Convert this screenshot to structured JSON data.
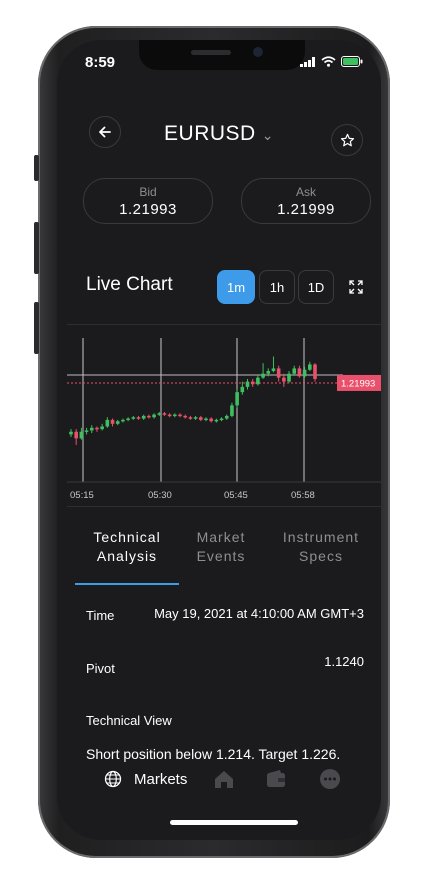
{
  "status": {
    "time": "8:59"
  },
  "header": {
    "symbol": "EURUSD",
    "back_icon": "back-arrow-icon",
    "favorite_icon": "star-icon"
  },
  "quotes": {
    "bid": {
      "label": "Bid",
      "value": "1.21993"
    },
    "ask": {
      "label": "Ask",
      "value": "1.21999"
    }
  },
  "live_chart": {
    "title": "Live Chart",
    "timeframes": [
      {
        "label": "1m",
        "active": true
      },
      {
        "label": "1h",
        "active": false
      },
      {
        "label": "1D",
        "active": false
      }
    ],
    "current_price_label": "1.21993",
    "x_labels": [
      "05:15",
      "05:30",
      "05:45",
      "05:58"
    ]
  },
  "chart_data": {
    "type": "candlestick",
    "x_ticks": [
      "05:15",
      "05:30",
      "05:45",
      "05:58"
    ],
    "current_price": 1.21993,
    "candles": [
      {
        "o": 0.3,
        "c": 0.32,
        "h": 0.34,
        "l": 0.28
      },
      {
        "o": 0.32,
        "c": 0.27,
        "h": 0.34,
        "l": 0.22
      },
      {
        "o": 0.27,
        "c": 0.32,
        "h": 0.35,
        "l": 0.26
      },
      {
        "o": 0.32,
        "c": 0.33,
        "h": 0.35,
        "l": 0.3
      },
      {
        "o": 0.33,
        "c": 0.35,
        "h": 0.37,
        "l": 0.31
      },
      {
        "o": 0.35,
        "c": 0.34,
        "h": 0.36,
        "l": 0.32
      },
      {
        "o": 0.34,
        "c": 0.36,
        "h": 0.38,
        "l": 0.33
      },
      {
        "o": 0.36,
        "c": 0.41,
        "h": 0.43,
        "l": 0.35
      },
      {
        "o": 0.41,
        "c": 0.38,
        "h": 0.42,
        "l": 0.36
      },
      {
        "o": 0.38,
        "c": 0.4,
        "h": 0.41,
        "l": 0.37
      },
      {
        "o": 0.4,
        "c": 0.41,
        "h": 0.42,
        "l": 0.39
      },
      {
        "o": 0.41,
        "c": 0.42,
        "h": 0.43,
        "l": 0.4
      },
      {
        "o": 0.42,
        "c": 0.43,
        "h": 0.44,
        "l": 0.41
      },
      {
        "o": 0.43,
        "c": 0.42,
        "h": 0.44,
        "l": 0.41
      },
      {
        "o": 0.42,
        "c": 0.44,
        "h": 0.45,
        "l": 0.41
      },
      {
        "o": 0.44,
        "c": 0.43,
        "h": 0.45,
        "l": 0.42
      },
      {
        "o": 0.43,
        "c": 0.45,
        "h": 0.46,
        "l": 0.42
      },
      {
        "o": 0.45,
        "c": 0.46,
        "h": 0.47,
        "l": 0.44
      },
      {
        "o": 0.46,
        "c": 0.45,
        "h": 0.47,
        "l": 0.44
      },
      {
        "o": 0.45,
        "c": 0.44,
        "h": 0.46,
        "l": 0.43
      },
      {
        "o": 0.44,
        "c": 0.45,
        "h": 0.46,
        "l": 0.43
      },
      {
        "o": 0.45,
        "c": 0.44,
        "h": 0.46,
        "l": 0.43
      },
      {
        "o": 0.44,
        "c": 0.43,
        "h": 0.45,
        "l": 0.42
      },
      {
        "o": 0.43,
        "c": 0.42,
        "h": 0.44,
        "l": 0.41
      },
      {
        "o": 0.42,
        "c": 0.43,
        "h": 0.44,
        "l": 0.41
      },
      {
        "o": 0.43,
        "c": 0.41,
        "h": 0.44,
        "l": 0.4
      },
      {
        "o": 0.41,
        "c": 0.42,
        "h": 0.43,
        "l": 0.4
      },
      {
        "o": 0.42,
        "c": 0.4,
        "h": 0.43,
        "l": 0.39
      },
      {
        "o": 0.4,
        "c": 0.41,
        "h": 0.42,
        "l": 0.39
      },
      {
        "o": 0.41,
        "c": 0.42,
        "h": 0.43,
        "l": 0.4
      },
      {
        "o": 0.42,
        "c": 0.44,
        "h": 0.45,
        "l": 0.41
      },
      {
        "o": 0.44,
        "c": 0.52,
        "h": 0.54,
        "l": 0.43
      },
      {
        "o": 0.52,
        "c": 0.62,
        "h": 0.64,
        "l": 0.5
      },
      {
        "o": 0.62,
        "c": 0.66,
        "h": 0.7,
        "l": 0.6
      },
      {
        "o": 0.66,
        "c": 0.7,
        "h": 0.72,
        "l": 0.64
      },
      {
        "o": 0.7,
        "c": 0.68,
        "h": 0.72,
        "l": 0.66
      },
      {
        "o": 0.68,
        "c": 0.73,
        "h": 0.75,
        "l": 0.67
      },
      {
        "o": 0.73,
        "c": 0.76,
        "h": 0.84,
        "l": 0.72
      },
      {
        "o": 0.76,
        "c": 0.78,
        "h": 0.8,
        "l": 0.74
      },
      {
        "o": 0.78,
        "c": 0.8,
        "h": 0.89,
        "l": 0.77
      },
      {
        "o": 0.8,
        "c": 0.73,
        "h": 0.82,
        "l": 0.7
      },
      {
        "o": 0.73,
        "c": 0.7,
        "h": 0.76,
        "l": 0.66
      },
      {
        "o": 0.7,
        "c": 0.76,
        "h": 0.78,
        "l": 0.69
      },
      {
        "o": 0.76,
        "c": 0.8,
        "h": 0.82,
        "l": 0.75
      },
      {
        "o": 0.8,
        "c": 0.74,
        "h": 0.82,
        "l": 0.73
      },
      {
        "o": 0.74,
        "c": 0.79,
        "h": 0.81,
        "l": 0.73
      },
      {
        "o": 0.79,
        "c": 0.83,
        "h": 0.85,
        "l": 0.78
      },
      {
        "o": 0.83,
        "c": 0.72,
        "h": 0.84,
        "l": 0.7
      }
    ],
    "price_line": 0.72
  },
  "tabs": [
    {
      "line1": "Technical",
      "line2": "Analysis",
      "active": true
    },
    {
      "line1": "Market",
      "line2": "Events",
      "active": false
    },
    {
      "line1": "Instrument",
      "line2": "Specs",
      "active": false
    }
  ],
  "details": {
    "time_label": "Time",
    "time_value": "May 19, 2021 at 4:10:00 AM GMT+3",
    "pivot_label": "Pivot",
    "pivot_value": "1.1240",
    "technical_view_label": "Technical View",
    "technical_view_text": "Short position below 1.214. Target 1.226."
  },
  "bottom_nav": {
    "markets_label": "Markets",
    "items": [
      "globe-icon",
      "home-icon",
      "wallet-icon",
      "more-icon"
    ]
  },
  "colors": {
    "accent": "#3d9be9",
    "up": "#3fbf5f",
    "down": "#e8506b",
    "background": "#1b1b1d"
  }
}
